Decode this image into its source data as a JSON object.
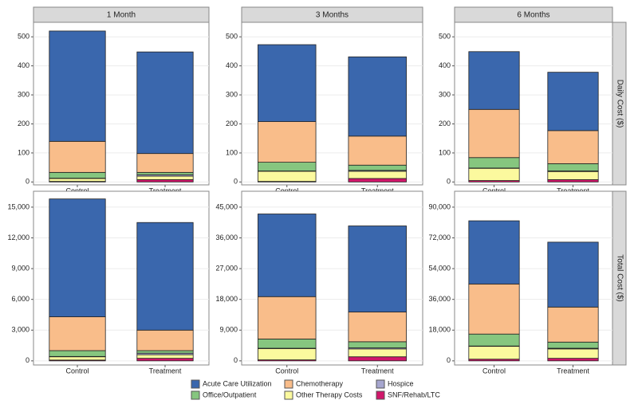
{
  "chart_data": {
    "type": "bar",
    "stacked": true,
    "grid": true,
    "columns": [
      "1 Month",
      "3 Months",
      "6 Months"
    ],
    "rows": [
      "Daily Cost ($)",
      "Total Cost ($)"
    ],
    "categories": [
      "Control",
      "Treatment"
    ],
    "series": [
      {
        "name": "SNF/Rehab/LTC",
        "color": "#d0176a"
      },
      {
        "name": "Other Therapy Costs",
        "color": "#fbf99e"
      },
      {
        "name": "Hospice",
        "color": "#a6a6cf"
      },
      {
        "name": "Office/Outpatient",
        "color": "#86c67f"
      },
      {
        "name": "Chemotherapy",
        "color": "#f9bd8a"
      },
      {
        "name": "Acute Care Utilization",
        "color": "#3a67ad"
      }
    ],
    "panels": [
      {
        "ylim": [
          -10,
          550
        ],
        "yticks": [
          0,
          100,
          200,
          300,
          400,
          500
        ],
        "values": [
          [
            2,
            8
          ],
          [
            10,
            12
          ],
          [
            1,
            5
          ],
          [
            20,
            8
          ],
          [
            107,
            65
          ],
          [
            380,
            350
          ]
        ]
      },
      {
        "ylim": [
          -10,
          550
        ],
        "yticks": [
          0,
          100,
          200,
          300,
          400,
          500
        ],
        "values": [
          [
            2,
            12
          ],
          [
            35,
            25
          ],
          [
            1,
            3
          ],
          [
            30,
            18
          ],
          [
            140,
            100
          ],
          [
            265,
            273
          ]
        ]
      },
      {
        "ylim": [
          -10,
          550
        ],
        "yticks": [
          0,
          100,
          200,
          300,
          400,
          500
        ],
        "values": [
          [
            5,
            8
          ],
          [
            42,
            28
          ],
          [
            1,
            2
          ],
          [
            36,
            25
          ],
          [
            166,
            114
          ],
          [
            199,
            201
          ]
        ]
      },
      {
        "ylim": [
          -400,
          16550
        ],
        "yticks": [
          0,
          {
            "value": 3000,
            "label": "3,000"
          },
          {
            "value": 6000,
            "label": "6,000"
          },
          {
            "value": 9000,
            "label": "9,000"
          },
          {
            "value": 12000,
            "label": "12,000"
          },
          {
            "value": 15000,
            "label": "15,000"
          }
        ],
        "values": [
          [
            80,
            250
          ],
          [
            320,
            350
          ],
          [
            30,
            150
          ],
          [
            570,
            250
          ],
          [
            3300,
            2000
          ],
          [
            11500,
            10500
          ]
        ]
      },
      {
        "ylim": [
          -1200,
          49650
        ],
        "yticks": [
          0,
          {
            "value": 9000,
            "label": "9,000"
          },
          {
            "value": 18000,
            "label": "18,000"
          },
          {
            "value": 27000,
            "label": "27,000"
          },
          {
            "value": 36000,
            "label": "36,000"
          },
          {
            "value": 45000,
            "label": "45,000"
          }
        ],
        "values": [
          [
            300,
            1200
          ],
          [
            3300,
            2300
          ],
          [
            100,
            300
          ],
          [
            2700,
            1800
          ],
          [
            12400,
            8700
          ],
          [
            24200,
            25200
          ]
        ]
      },
      {
        "ylim": [
          -2400,
          99300
        ],
        "yticks": [
          0,
          {
            "value": 18000,
            "label": "18,000"
          },
          {
            "value": 36000,
            "label": "36,000"
          },
          {
            "value": 54000,
            "label": "54,000"
          },
          {
            "value": 72000,
            "label": "72,000"
          },
          {
            "value": 90000,
            "label": "90,000"
          }
        ],
        "values": [
          [
            1000,
            1500
          ],
          [
            7500,
            5500
          ],
          [
            200,
            400
          ],
          [
            7000,
            3600
          ],
          [
            29300,
            20500
          ],
          [
            37000,
            38000
          ]
        ]
      }
    ]
  }
}
